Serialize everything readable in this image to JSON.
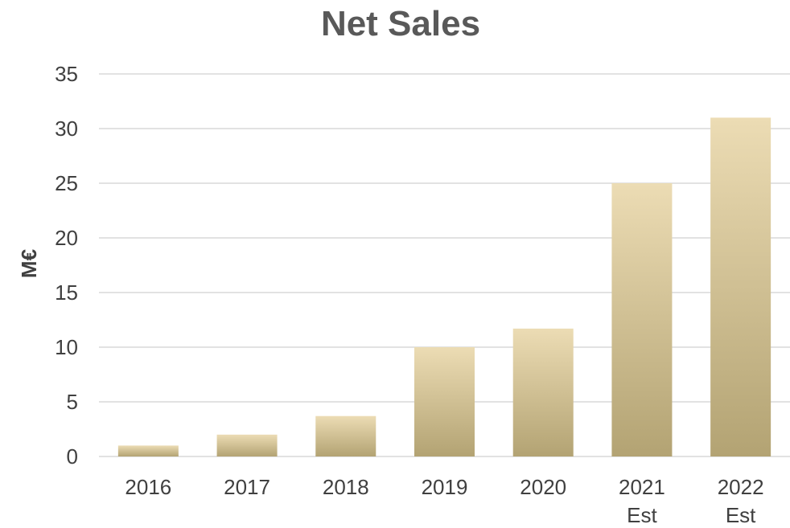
{
  "chart_data": {
    "type": "bar",
    "title": "Net Sales",
    "xlabel": "",
    "ylabel": "M€",
    "ylim": [
      0,
      35
    ],
    "yticks": [
      0,
      5,
      10,
      15,
      20,
      25,
      30,
      35
    ],
    "grid": true,
    "categories": [
      [
        "2016"
      ],
      [
        "2017"
      ],
      [
        "2018"
      ],
      [
        "2019"
      ],
      [
        "2020"
      ],
      [
        "2021",
        "Est"
      ],
      [
        "2022",
        "Est"
      ]
    ],
    "values": [
      1,
      2,
      3.7,
      10,
      11.7,
      25,
      31
    ],
    "colors": {
      "bar_top": "#ecdcb4",
      "bar_bottom": "#b3a373",
      "grid": "#d9d9d9",
      "text": "#404040",
      "title": "#595959"
    }
  }
}
